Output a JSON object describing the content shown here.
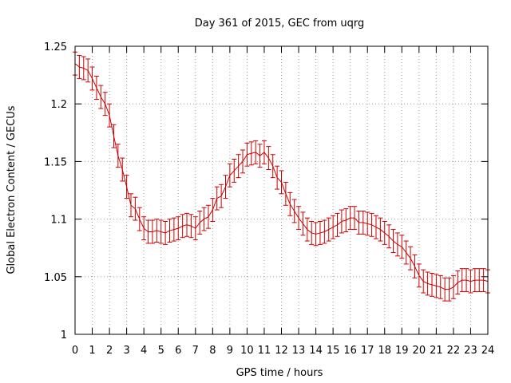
{
  "chart_data": {
    "type": "line",
    "title": "Day 361 of 2015, GEC from uqrg",
    "xlabel": "GPS time / hours",
    "ylabel": "Global Electron Content / GECUs",
    "xlim": [
      0,
      24
    ],
    "ylim": [
      1,
      1.25
    ],
    "x_ticks": [
      "0",
      "1",
      "2",
      "3",
      "4",
      "5",
      "6",
      "7",
      "8",
      "9",
      "10",
      "11",
      "12",
      "13",
      "14",
      "15",
      "16",
      "17",
      "18",
      "19",
      "20",
      "21",
      "22",
      "23",
      "24"
    ],
    "y_ticks": [
      "1",
      "1.05",
      "1.1",
      "1.15",
      "1.2",
      "1.25"
    ],
    "grid": true,
    "series_color": "#cc0000",
    "error_bar": 0.01,
    "series": [
      {
        "x": [
          0,
          0.25,
          0.5,
          0.75,
          1,
          1.25,
          1.5,
          1.75,
          2,
          2.25,
          2.5,
          2.75,
          3,
          3.25,
          3.5,
          3.75,
          4,
          4.25,
          4.5,
          4.75,
          5,
          5.25,
          5.5,
          5.75,
          6,
          6.25,
          6.5,
          6.75,
          7,
          7.25,
          7.5,
          7.75,
          8,
          8.25,
          8.5,
          8.75,
          9,
          9.25,
          9.5,
          9.75,
          10,
          10.25,
          10.5,
          10.75,
          11,
          11.25,
          11.5,
          11.75,
          12,
          12.25,
          12.5,
          12.75,
          13,
          13.25,
          13.5,
          13.75,
          14,
          14.25,
          14.5,
          14.75,
          15,
          15.25,
          15.5,
          15.75,
          16,
          16.25,
          16.5,
          16.75,
          17,
          17.25,
          17.5,
          17.75,
          18,
          18.25,
          18.5,
          18.75,
          19,
          19.25,
          19.5,
          19.75,
          20,
          20.25,
          20.5,
          20.75,
          21,
          21.25,
          21.5,
          21.75,
          22,
          22.25,
          22.5,
          22.75,
          23,
          23.25,
          23.5,
          23.75,
          24
        ],
        "values": [
          1.235,
          1.232,
          1.231,
          1.229,
          1.222,
          1.214,
          1.206,
          1.2,
          1.19,
          1.172,
          1.155,
          1.143,
          1.128,
          1.112,
          1.109,
          1.1,
          1.092,
          1.089,
          1.089,
          1.09,
          1.089,
          1.088,
          1.09,
          1.091,
          1.092,
          1.094,
          1.095,
          1.094,
          1.092,
          1.097,
          1.1,
          1.102,
          1.108,
          1.118,
          1.12,
          1.128,
          1.138,
          1.142,
          1.146,
          1.15,
          1.156,
          1.157,
          1.158,
          1.155,
          1.158,
          1.153,
          1.146,
          1.136,
          1.132,
          1.122,
          1.113,
          1.107,
          1.101,
          1.096,
          1.091,
          1.088,
          1.087,
          1.088,
          1.089,
          1.091,
          1.093,
          1.095,
          1.098,
          1.099,
          1.101,
          1.101,
          1.097,
          1.097,
          1.096,
          1.095,
          1.093,
          1.091,
          1.088,
          1.085,
          1.081,
          1.078,
          1.076,
          1.071,
          1.066,
          1.059,
          1.051,
          1.046,
          1.044,
          1.043,
          1.042,
          1.041,
          1.039,
          1.039,
          1.041,
          1.045,
          1.047,
          1.047,
          1.046,
          1.047,
          1.047,
          1.047,
          1.046
        ]
      }
    ]
  }
}
